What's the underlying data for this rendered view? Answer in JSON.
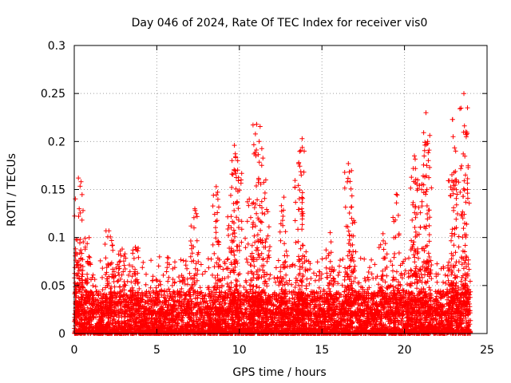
{
  "chart_data": {
    "type": "scatter",
    "title": "Day 046 of 2024, Rate Of TEC Index for receiver vis0",
    "xlabel": "GPS time / hours",
    "ylabel": "ROTI / TECUs",
    "xlim": [
      0,
      25
    ],
    "ylim": [
      0,
      0.3
    ],
    "xticks": [
      0,
      5,
      10,
      15,
      20,
      25
    ],
    "xtick_labels": [
      "0",
      "5",
      "10",
      "15",
      "20",
      "25"
    ],
    "yticks": [
      0,
      0.05,
      0.1,
      0.15,
      0.2,
      0.25,
      0.3
    ],
    "ytick_labels": [
      "0",
      "0.05",
      "0.1",
      "0.15",
      "0.2",
      "0.25",
      "0.3"
    ],
    "grid": true,
    "marker": "+",
    "color": "#ff0000",
    "series": [
      {
        "name": "ROTI",
        "x_range": [
          0,
          24
        ],
        "base_band": [
          0.0,
          0.04
        ],
        "spikes": [
          {
            "x": 0.25,
            "y": 0.162
          },
          {
            "x": 0.3,
            "y": 0.13
          },
          {
            "x": 0.9,
            "y": 0.1
          },
          {
            "x": 2.1,
            "y": 0.107
          },
          {
            "x": 2.9,
            "y": 0.088
          },
          {
            "x": 3.7,
            "y": 0.09
          },
          {
            "x": 7.3,
            "y": 0.13
          },
          {
            "x": 8.6,
            "y": 0.153
          },
          {
            "x": 9.5,
            "y": 0.122
          },
          {
            "x": 9.7,
            "y": 0.196
          },
          {
            "x": 9.9,
            "y": 0.18
          },
          {
            "x": 10.6,
            "y": 0.14
          },
          {
            "x": 11.05,
            "y": 0.218
          },
          {
            "x": 11.2,
            "y": 0.2
          },
          {
            "x": 11.6,
            "y": 0.16
          },
          {
            "x": 12.7,
            "y": 0.142
          },
          {
            "x": 13.6,
            "y": 0.178
          },
          {
            "x": 13.8,
            "y": 0.203
          },
          {
            "x": 15.5,
            "y": 0.105
          },
          {
            "x": 16.6,
            "y": 0.177
          },
          {
            "x": 16.8,
            "y": 0.12
          },
          {
            "x": 18.7,
            "y": 0.104
          },
          {
            "x": 19.5,
            "y": 0.145
          },
          {
            "x": 20.6,
            "y": 0.185
          },
          {
            "x": 20.8,
            "y": 0.16
          },
          {
            "x": 21.3,
            "y": 0.23
          },
          {
            "x": 21.4,
            "y": 0.2
          },
          {
            "x": 22.9,
            "y": 0.223
          },
          {
            "x": 23.1,
            "y": 0.19
          },
          {
            "x": 23.6,
            "y": 0.25
          },
          {
            "x": 23.7,
            "y": 0.21
          }
        ]
      }
    ]
  }
}
